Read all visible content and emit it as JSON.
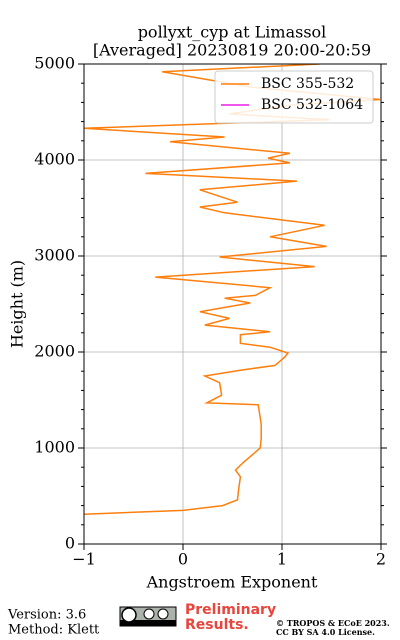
{
  "chart_data": {
    "type": "line",
    "title": "pollyxt_cyp at Limassol",
    "subtitle": "[Averaged] 20230819 20:00-20:59",
    "x_label": "Angstroem Exponent",
    "y_label": "Height (m)",
    "xlim": [
      -1,
      2
    ],
    "ylim": [
      0,
      5000
    ],
    "xticks": [
      {
        "value": -1,
        "label": "−1"
      },
      0,
      1,
      2
    ],
    "yticks": [
      0,
      1000,
      2000,
      3000,
      4000,
      5000
    ],
    "y_minor_ticks": [
      200,
      400,
      600,
      800,
      1200,
      1400,
      1600,
      1800,
      2200,
      2400,
      2600,
      2800,
      3200,
      3400,
      3600,
      3800,
      4200,
      4400,
      4600,
      4800
    ],
    "grid": true,
    "legend": "upper right",
    "series": [
      {
        "name": "BSC 355-532",
        "color": "#ff7f0e",
        "x": [
          -1.0,
          0.0,
          0.4,
          0.55,
          0.56,
          0.58,
          0.53,
          0.61,
          0.78,
          0.79,
          0.79,
          0.76,
          0.24,
          0.39,
          0.37,
          0.22,
          0.58,
          0.93,
          1.03,
          1.06,
          0.88,
          0.58,
          0.58,
          0.88,
          0.22,
          0.47,
          0.17,
          0.68,
          0.42,
          0.73,
          0.88,
          -0.28,
          1.33,
          0.37,
          1.45,
          0.88,
          1.43,
          0.42,
          0.17,
          0.55,
          0.17,
          1.15,
          -0.38,
          1.08,
          0.86,
          1.08,
          -0.13,
          0.42,
          -1.0,
          1.48,
          0.47,
          1.08,
          1.99,
          0.68,
          -0.21,
          1.38
        ],
        "y": [
          310,
          350,
          400,
          460,
          550,
          700,
          770,
          850,
          1000,
          1100,
          1250,
          1450,
          1470,
          1550,
          1680,
          1750,
          1810,
          1860,
          1950,
          1990,
          2050,
          2090,
          2180,
          2210,
          2280,
          2350,
          2420,
          2510,
          2560,
          2590,
          2670,
          2780,
          2890,
          2990,
          3100,
          3200,
          3320,
          3450,
          3510,
          3560,
          3690,
          3780,
          3860,
          3970,
          4020,
          4070,
          4190,
          4240,
          4330,
          4420,
          4480,
          4570,
          4630,
          4760,
          4920,
          5000
        ]
      },
      {
        "name": "BSC 532-1064",
        "color": "#e81ee8",
        "x": [],
        "y": []
      }
    ]
  },
  "footer": {
    "version": "Version: 3.6",
    "method": "Method: Klett",
    "notice": [
      "Preliminary",
      "Results."
    ],
    "copyright": [
      "© TROPOS & ECoE 2023.",
      "CC BY SA 4.0 License."
    ]
  }
}
